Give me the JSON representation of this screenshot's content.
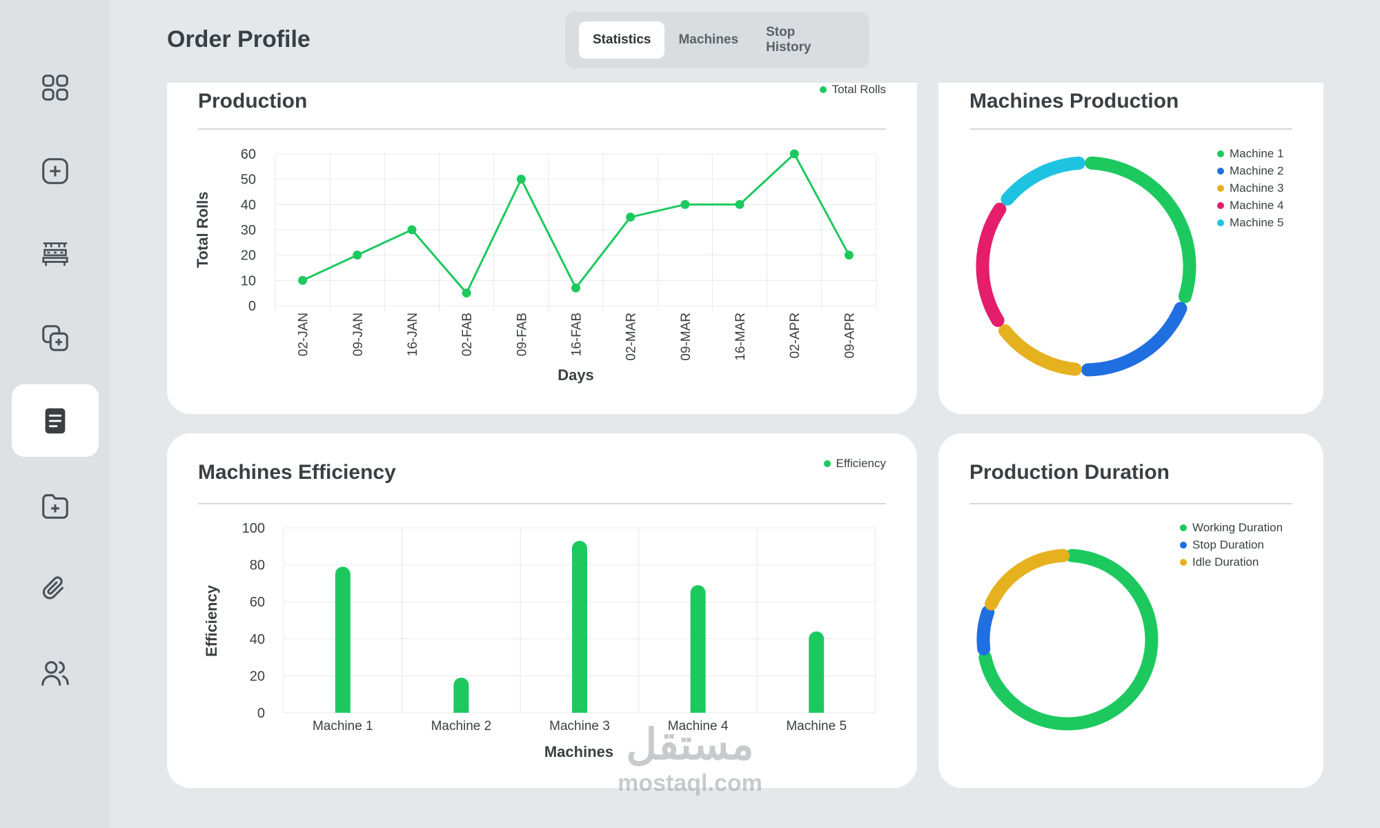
{
  "header": {
    "title": "Order Profile",
    "tabs": [
      {
        "label": "Statistics",
        "active": true
      },
      {
        "label": "Machines",
        "active": false
      },
      {
        "label": "Stop History",
        "active": false
      }
    ]
  },
  "sidebar": {
    "items": [
      {
        "icon": "dashboard-grid-icon",
        "active": false
      },
      {
        "icon": "add-square-icon",
        "active": false
      },
      {
        "icon": "production-line-icon",
        "active": false
      },
      {
        "icon": "copy-add-icon",
        "active": false
      },
      {
        "icon": "document-icon",
        "active": true
      },
      {
        "icon": "folder-add-icon",
        "active": false
      },
      {
        "icon": "paperclip-icon",
        "active": false
      },
      {
        "icon": "users-icon",
        "active": false
      }
    ]
  },
  "colors": {
    "green": "#1dc95f",
    "blue": "#1f6fe0",
    "yellow": "#e6b11f",
    "pink": "#e41e6b",
    "cyan": "#1ec3e2"
  },
  "production": {
    "title": "Production",
    "chart_data": {
      "type": "line",
      "title": "Production",
      "categories": [
        "02-JAN",
        "09-JAN",
        "16-JAN",
        "02-FAB",
        "09-FAB",
        "16-FAB",
        "02-MAR",
        "09-MAR",
        "16-MAR",
        "02-APR",
        "09-APR"
      ],
      "series": [
        {
          "name": "Total Rolls",
          "values": [
            10,
            20,
            30,
            5,
            50,
            7,
            35,
            40,
            40,
            60,
            20
          ]
        }
      ],
      "xlabel": "Days",
      "ylabel": "Total Rolls",
      "ylim": [
        0,
        60
      ],
      "yticks": [
        0,
        10,
        20,
        30,
        40,
        50,
        60
      ],
      "grid": true,
      "legend": "top-right"
    }
  },
  "machines_production": {
    "title": "Machines Production",
    "chart_data": {
      "type": "pie",
      "categories": [
        "Machine 1",
        "Machine 2",
        "Machine 3",
        "Machine 4",
        "Machine 5"
      ],
      "values": [
        32,
        20,
        14,
        20,
        14
      ],
      "legend": "top-right"
    }
  },
  "efficiency": {
    "title": "Machines Efficiency",
    "chart_data": {
      "type": "bar",
      "categories": [
        "Machine 1",
        "Machine 2",
        "Machine 3",
        "Machine 4",
        "Machine 5"
      ],
      "series": [
        {
          "name": "Efficiency",
          "values": [
            79,
            19,
            93,
            69,
            44
          ]
        }
      ],
      "xlabel": "Machines",
      "ylabel": "Efficiency",
      "ylim": [
        0,
        100
      ],
      "yticks": [
        0,
        20,
        40,
        60,
        80,
        100
      ],
      "grid": true,
      "legend": "top-right"
    }
  },
  "production_duration": {
    "title": "Production Duration",
    "chart_data": {
      "type": "pie",
      "categories": [
        "Working Duration",
        "Stop Duration",
        "Idle Duration"
      ],
      "values": [
        70,
        7,
        17
      ],
      "legend": "top-right"
    }
  },
  "watermark": {
    "arabic": "مستقل",
    "latin": "mostaql.com"
  }
}
